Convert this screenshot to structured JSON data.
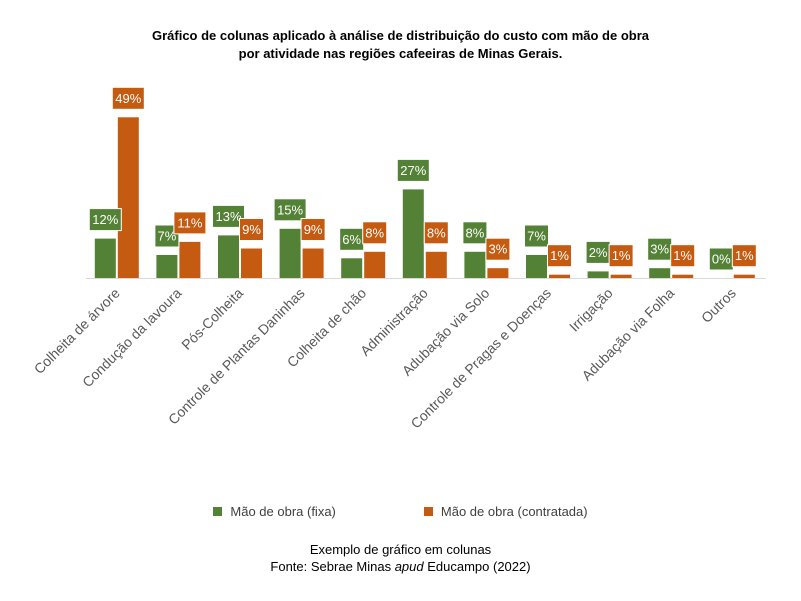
{
  "chart_data": {
    "type": "bar",
    "title_lines": [
      "Gráfico de colunas aplicado à análise de distribuição do custo com mão de obra",
      "por atividade nas regiões cafeeiras de Minas Gerais."
    ],
    "categories": [
      "Colheita de árvore",
      "Condução da lavoura",
      "Pós-Colheita",
      "Controle de Plantas Daninhas",
      "Colheita de chão",
      "Administração",
      "Adubação via Solo",
      "Controle de Pragas e Doenças",
      "Irrigação",
      "Adubação via Folha",
      "Outros"
    ],
    "series": [
      {
        "name": "Mão de obra (fixa)",
        "color": "#538135",
        "values": [
          12,
          7,
          13,
          15,
          6,
          27,
          8,
          7,
          2,
          3,
          0
        ],
        "labels": [
          "12%",
          "7%",
          "13%",
          "15%",
          "6%",
          "27%",
          "8%",
          "7%",
          "2%",
          "3%",
          "0%"
        ]
      },
      {
        "name": "Mão de obra (contratada)",
        "color": "#C55A11",
        "values": [
          49,
          11,
          9,
          9,
          8,
          8,
          3,
          1,
          1,
          1,
          1
        ],
        "labels": [
          "49%",
          "11%",
          "9%",
          "9%",
          "8%",
          "8%",
          "3%",
          "1%",
          "1%",
          "1%",
          "1%"
        ]
      }
    ],
    "ylim": [
      0,
      50
    ],
    "grid": false,
    "legend_position": "bottom"
  },
  "caption": {
    "line1": "Exemplo de gráfico em colunas",
    "line2_prefix": "Fonte: Sebrae Minas ",
    "line2_italic": "apud",
    "line2_suffix": " Educampo (2022)"
  }
}
